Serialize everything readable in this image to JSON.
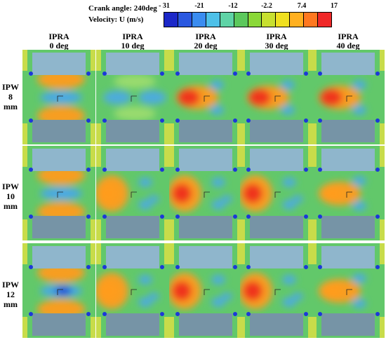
{
  "header": {
    "crank_angle": "Crank angle: 240deg",
    "velocity": "Velocity: U (m/s)"
  },
  "colorbar": {
    "ticks": [
      "- 31",
      "-21",
      "-12",
      "-2.2",
      "7.4",
      "17"
    ],
    "colors": [
      "#1c28c8",
      "#2a58e0",
      "#3a8cf0",
      "#4ec0e8",
      "#5fd3a6",
      "#5cc85c",
      "#8ad838",
      "#c8e030",
      "#f0e020",
      "#ffb020",
      "#ff7820",
      "#f02828"
    ]
  },
  "columns": [
    "IPRA\n0 deg",
    "IPRA\n10 deg",
    "IPRA\n20 deg",
    "IPRA\n30 deg",
    "IPRA\n40 deg"
  ],
  "rows": [
    "IPW\n8\nmm",
    "IPW\n10\nmm",
    "IPW\n12\nmm"
  ],
  "palette": {
    "bg": "#62c86a",
    "piston": "#8fb6cc",
    "piston_dark": "#7694a6",
    "wall": "#c8dc4a",
    "hot": "#ff9c1c",
    "very_hot": "#ee3020",
    "cold": "#4aa8e8",
    "very_cold": "#1c38d8"
  },
  "cells": [
    [
      {
        "pattern": "x-center-cold",
        "lobe": "hot",
        "core": "cold"
      },
      {
        "pattern": "x-faint",
        "lobe": "cyan",
        "core": "cyan"
      },
      {
        "pattern": "jet-right",
        "lobe": "hot",
        "core": "very_hot"
      },
      {
        "pattern": "jet-right",
        "lobe": "hot",
        "core": "very_hot"
      },
      {
        "pattern": "jet-right",
        "lobe": "hot",
        "core": "very_hot"
      }
    ],
    [
      {
        "pattern": "x-center-cold",
        "lobe": "hot",
        "core": "cold"
      },
      {
        "pattern": "jet-left",
        "lobe": "hot",
        "core": "hot"
      },
      {
        "pattern": "jet-left",
        "lobe": "hot",
        "core": "very_hot"
      },
      {
        "pattern": "jet-left",
        "lobe": "hot",
        "core": "very_hot"
      },
      {
        "pattern": "jet-right",
        "lobe": "hot",
        "core": "hot"
      }
    ],
    [
      {
        "pattern": "cold-jet",
        "lobe": "hot",
        "core": "very_cold"
      },
      {
        "pattern": "jet-left",
        "lobe": "hot",
        "core": "hot"
      },
      {
        "pattern": "jet-left",
        "lobe": "hot",
        "core": "very_hot"
      },
      {
        "pattern": "jet-left",
        "lobe": "hot",
        "core": "very_hot"
      },
      {
        "pattern": "jet-right",
        "lobe": "hot",
        "core": "hot"
      }
    ]
  ]
}
